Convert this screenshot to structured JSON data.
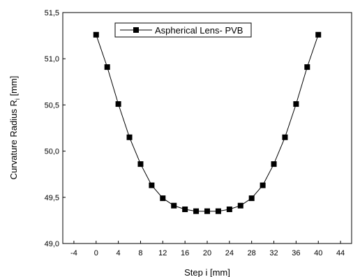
{
  "chart_data": {
    "type": "line",
    "xlabel": "Step i  [mm]",
    "ylabel": "Curvature Radius R",
    "ylabel_subscript": "i",
    "ylabel_unit": "  [mm]",
    "xlim": [
      -6,
      46
    ],
    "ylim": [
      49.0,
      51.5
    ],
    "x_ticks": [
      -4,
      0,
      4,
      8,
      12,
      16,
      20,
      24,
      28,
      32,
      36,
      40,
      44
    ],
    "x_tick_labels": [
      "-4",
      "0",
      "4",
      "8",
      "12",
      "16",
      "20",
      "24",
      "28",
      "32",
      "36",
      "40",
      "44"
    ],
    "y_ticks": [
      49.0,
      49.5,
      50.0,
      50.5,
      51.0,
      51.5
    ],
    "y_tick_labels": [
      "49,0",
      "49,5",
      "50,0",
      "50,5",
      "51,0",
      "51,5"
    ],
    "legend": {
      "position": "top-center"
    },
    "grid": false,
    "series": [
      {
        "name": "Aspherical Lens- PVB",
        "marker": "square",
        "color": "#000000",
        "x": [
          0,
          2,
          4,
          6,
          8,
          10,
          12,
          14,
          16,
          18,
          20,
          22,
          24,
          26,
          28,
          30,
          32,
          34,
          36,
          38,
          40
        ],
        "y": [
          51.26,
          50.91,
          50.51,
          50.15,
          49.86,
          49.63,
          49.49,
          49.41,
          49.37,
          49.35,
          49.35,
          49.35,
          49.37,
          49.41,
          49.49,
          49.63,
          49.86,
          50.15,
          50.51,
          50.91,
          51.26
        ]
      }
    ]
  }
}
